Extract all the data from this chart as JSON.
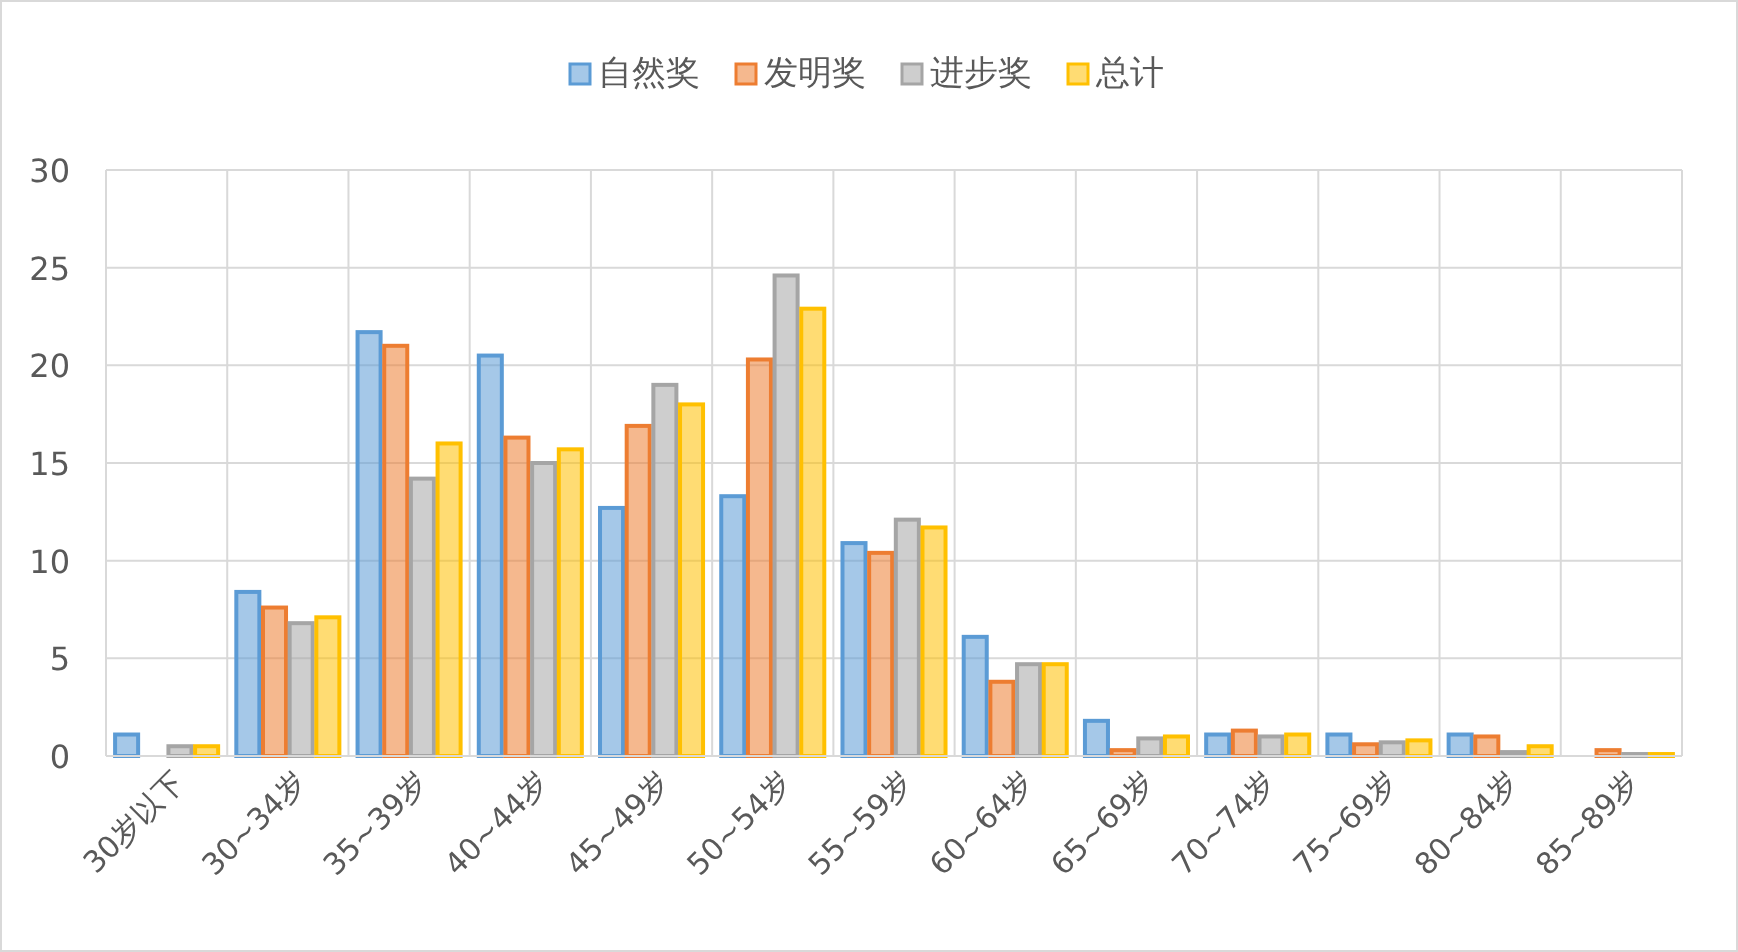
{
  "chart_data": {
    "type": "bar",
    "categories": [
      "30岁以下",
      "30~34岁",
      "35~39岁",
      "40~44岁",
      "45~49岁",
      "50~54岁",
      "55~59岁",
      "60~64岁",
      "65~69岁",
      "70~74岁",
      "75~69岁",
      "80~84岁",
      "85~89岁"
    ],
    "series": [
      {
        "name": "自然奖",
        "color": "#5b9bd5",
        "values": [
          1.1,
          8.4,
          21.7,
          20.5,
          12.7,
          13.3,
          10.9,
          6.1,
          1.8,
          1.1,
          1.1,
          1.1,
          0
        ]
      },
      {
        "name": "发明奖",
        "color": "#ed7d31",
        "values": [
          0,
          7.6,
          21.0,
          16.3,
          16.9,
          20.3,
          10.4,
          3.8,
          0.3,
          1.3,
          0.6,
          1.0,
          0.3
        ]
      },
      {
        "name": "进步奖",
        "color": "#a5a5a5",
        "values": [
          0.5,
          6.8,
          14.2,
          15.0,
          19.0,
          24.6,
          12.1,
          4.7,
          0.9,
          1.0,
          0.7,
          0.2,
          0.1
        ]
      },
      {
        "name": "总计",
        "color": "#ffc000",
        "values": [
          0.5,
          7.1,
          16.0,
          15.7,
          18.0,
          22.9,
          11.7,
          4.7,
          1.0,
          1.1,
          0.8,
          0.5,
          0.1
        ]
      }
    ],
    "ylim": [
      0,
      30
    ],
    "yticks": [
      0,
      5,
      10,
      15,
      20,
      25,
      30
    ],
    "grid": true,
    "legend": "top"
  }
}
